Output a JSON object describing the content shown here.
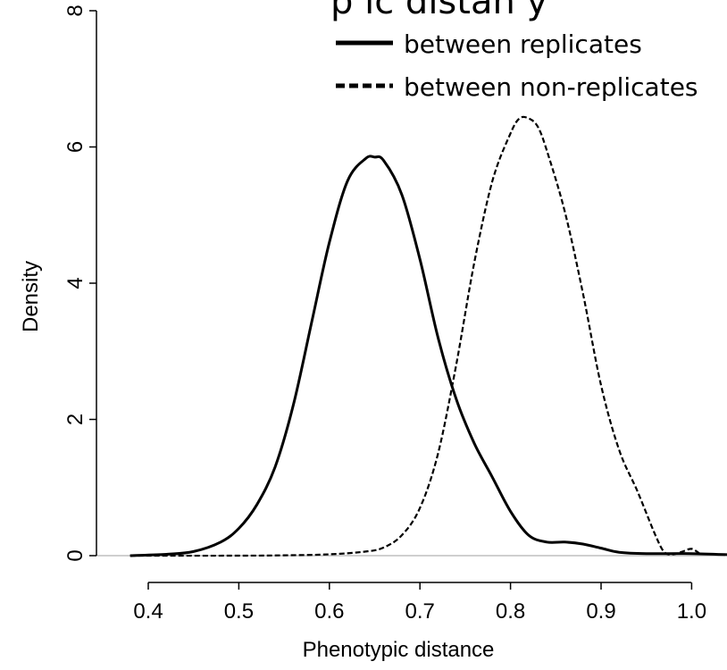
{
  "chart_data": {
    "type": "line",
    "title": "",
    "xlabel": "Phenotypic distance",
    "ylabel": "Density",
    "xlim": [
      0.38,
      1.06
    ],
    "ylim": [
      0,
      8
    ],
    "xticks": [
      "0.4",
      "0.5",
      "0.6",
      "0.7",
      "0.8",
      "0.9",
      "1.0"
    ],
    "yticks": [
      "0",
      "2",
      "4",
      "6",
      "8"
    ],
    "legend_position": "top-right",
    "grid": false,
    "series": [
      {
        "name": "between replicates",
        "style": "solid",
        "color": "#000000",
        "x": [
          0.38,
          0.42,
          0.45,
          0.48,
          0.5,
          0.52,
          0.54,
          0.56,
          0.58,
          0.6,
          0.62,
          0.64,
          0.65,
          0.66,
          0.68,
          0.7,
          0.72,
          0.74,
          0.76,
          0.78,
          0.8,
          0.82,
          0.84,
          0.86,
          0.88,
          0.9,
          0.92,
          0.95,
          1.0,
          1.05
        ],
        "y": [
          0,
          0.02,
          0.06,
          0.2,
          0.4,
          0.75,
          1.3,
          2.2,
          3.4,
          4.6,
          5.5,
          5.83,
          5.85,
          5.8,
          5.3,
          4.35,
          3.2,
          2.3,
          1.65,
          1.15,
          0.65,
          0.3,
          0.2,
          0.2,
          0.17,
          0.11,
          0.05,
          0.03,
          0.03,
          0.01
        ]
      },
      {
        "name": "between non-replicates",
        "style": "dashed",
        "color": "#000000",
        "x": [
          0.38,
          0.5,
          0.55,
          0.6,
          0.64,
          0.66,
          0.68,
          0.7,
          0.72,
          0.74,
          0.76,
          0.78,
          0.8,
          0.81,
          0.82,
          0.83,
          0.84,
          0.86,
          0.88,
          0.9,
          0.92,
          0.94,
          0.96,
          0.97,
          0.98,
          0.99,
          1.0,
          1.01
        ],
        "y": [
          0,
          0,
          0.005,
          0.02,
          0.06,
          0.12,
          0.3,
          0.7,
          1.5,
          2.8,
          4.3,
          5.5,
          6.2,
          6.42,
          6.42,
          6.3,
          5.95,
          5.05,
          3.85,
          2.5,
          1.55,
          0.95,
          0.3,
          0.05,
          0.02,
          0.06,
          0.1,
          0.02
        ]
      }
    ]
  },
  "title_fragment": "p   ic   distan   y"
}
